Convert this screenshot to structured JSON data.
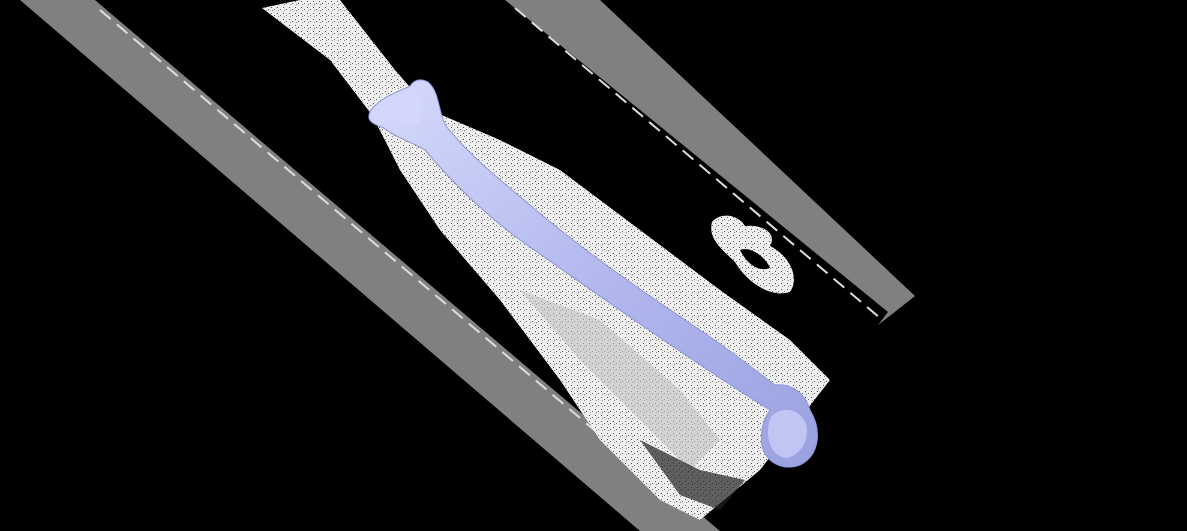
{
  "viewer": {
    "background_color": "#000000",
    "frame_color": "#808080",
    "scan_fill_color": "#f2f2f2",
    "bone_color": "#b7bdf0",
    "render_mode": "3d-volume-slice-with-bone-surface"
  },
  "scene": {
    "subject": "limb-long-bone",
    "slice_orientation": "oblique"
  }
}
